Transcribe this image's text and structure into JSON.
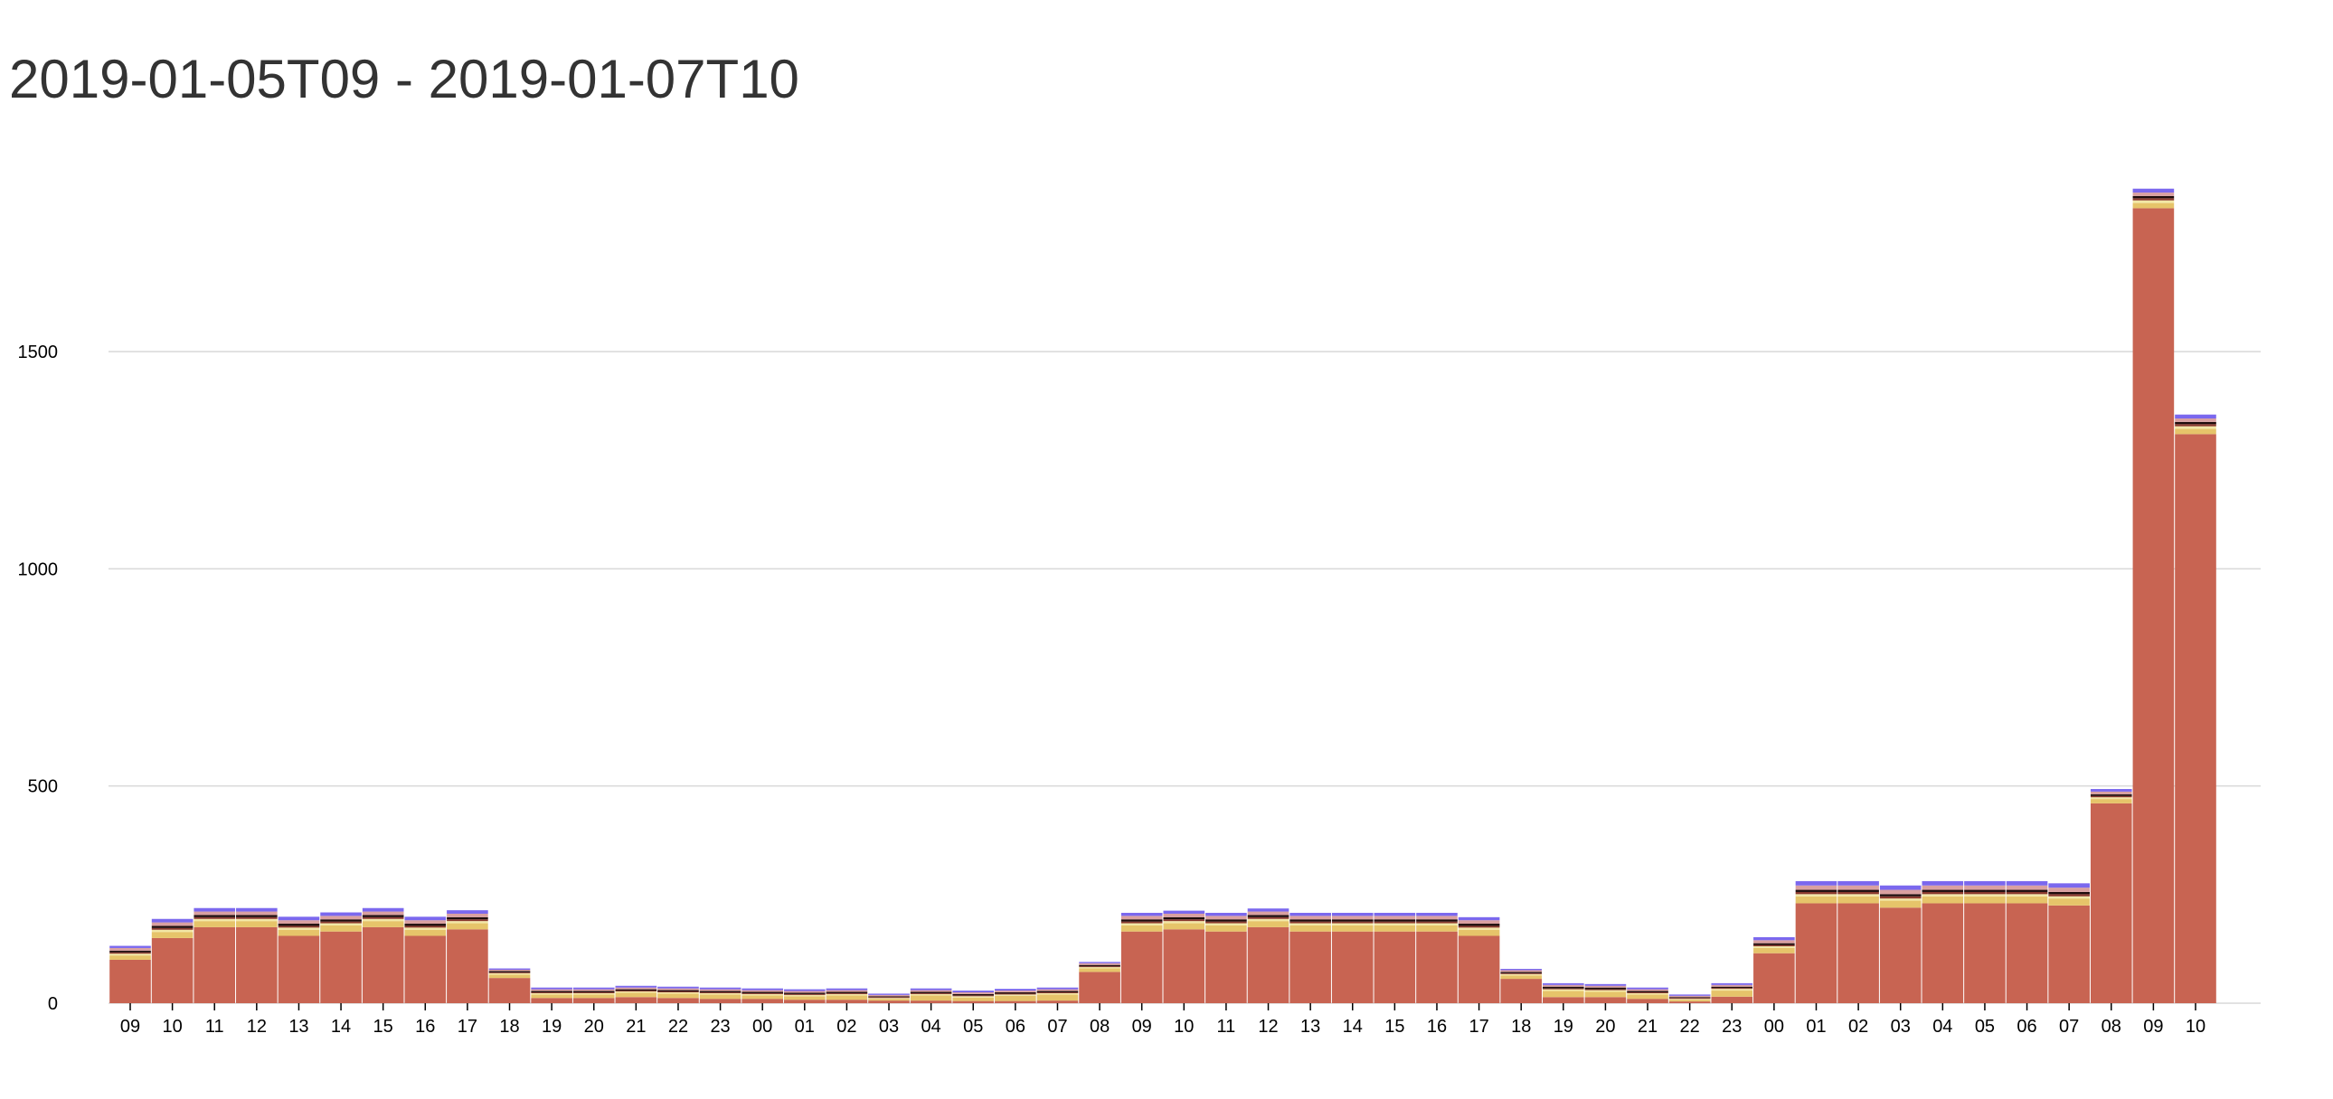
{
  "page": {
    "title": "2019-01-05T09 - 2019-01-07T10"
  },
  "chart_data": {
    "type": "bar",
    "stacked": true,
    "title": "2019-01-05T09 - 2019-01-07T10",
    "xlabel": "",
    "ylabel": "",
    "ylim": [
      0,
      1900
    ],
    "yticks": [
      0,
      500,
      1000,
      1500
    ],
    "grid": true,
    "legend": "none",
    "categories": [
      "09",
      "10",
      "11",
      "12",
      "13",
      "14",
      "15",
      "16",
      "17",
      "18",
      "19",
      "20",
      "21",
      "22",
      "23",
      "00",
      "01",
      "02",
      "03",
      "04",
      "05",
      "06",
      "07",
      "08",
      "09",
      "10",
      "11",
      "12",
      "13",
      "14",
      "15",
      "16",
      "17",
      "18",
      "19",
      "20",
      "21",
      "22",
      "23",
      "00",
      "01",
      "02",
      "03",
      "04",
      "05",
      "06",
      "07",
      "08",
      "09",
      "10"
    ],
    "series": [
      {
        "color": "#c86452",
        "values": [
          100,
          150,
          175,
          175,
          155,
          165,
          175,
          155,
          170,
          58,
          12,
          12,
          14,
          12,
          10,
          10,
          8,
          8,
          6,
          6,
          5,
          5,
          6,
          72,
          165,
          170,
          165,
          175,
          165,
          165,
          165,
          165,
          155,
          56,
          14,
          14,
          10,
          4,
          15,
          115,
          230,
          230,
          220,
          230,
          230,
          230,
          225,
          460,
          1830,
          1310
        ]
      },
      {
        "color": "#e6c46a",
        "values": [
          10,
          14,
          14,
          14,
          14,
          14,
          14,
          14,
          14,
          8,
          8,
          8,
          10,
          10,
          10,
          8,
          8,
          10,
          4,
          12,
          8,
          12,
          14,
          8,
          14,
          14,
          14,
          14,
          14,
          14,
          14,
          14,
          14,
          8,
          14,
          12,
          10,
          4,
          14,
          12,
          16,
          16,
          16,
          16,
          16,
          16,
          16,
          10,
          12,
          12
        ]
      },
      {
        "color": "#f2e7a6",
        "values": [
          4,
          5,
          5,
          5,
          5,
          5,
          5,
          5,
          5,
          3,
          3,
          3,
          3,
          3,
          3,
          3,
          3,
          3,
          2,
          3,
          3,
          3,
          3,
          3,
          5,
          5,
          5,
          5,
          5,
          5,
          5,
          5,
          5,
          3,
          4,
          4,
          3,
          2,
          4,
          4,
          5,
          5,
          5,
          5,
          5,
          5,
          5,
          4,
          6,
          6
        ]
      },
      {
        "color": "#8b3a2e",
        "values": [
          3,
          4,
          4,
          4,
          4,
          4,
          4,
          4,
          4,
          2,
          2,
          2,
          2,
          2,
          2,
          2,
          2,
          2,
          2,
          2,
          2,
          2,
          2,
          2,
          4,
          4,
          4,
          4,
          4,
          4,
          4,
          4,
          4,
          2,
          2,
          2,
          2,
          2,
          2,
          3,
          5,
          5,
          5,
          5,
          5,
          5,
          5,
          3,
          5,
          5
        ]
      },
      {
        "color": "#1e0c0c",
        "values": [
          4,
          5,
          5,
          5,
          5,
          5,
          5,
          5,
          5,
          3,
          3,
          3,
          3,
          3,
          3,
          3,
          3,
          3,
          2,
          3,
          3,
          3,
          3,
          3,
          5,
          5,
          5,
          5,
          5,
          5,
          5,
          5,
          5,
          3,
          4,
          4,
          3,
          2,
          3,
          4,
          5,
          5,
          5,
          5,
          5,
          5,
          5,
          4,
          5,
          5
        ]
      },
      {
        "color": "#d9a0a0",
        "values": [
          6,
          8,
          8,
          8,
          8,
          8,
          8,
          8,
          8,
          3,
          4,
          4,
          4,
          4,
          4,
          4,
          4,
          4,
          3,
          4,
          4,
          4,
          4,
          4,
          8,
          8,
          8,
          8,
          8,
          8,
          8,
          8,
          8,
          4,
          4,
          4,
          4,
          3,
          4,
          7,
          10,
          10,
          10,
          10,
          10,
          10,
          10,
          6,
          8,
          8
        ]
      },
      {
        "color": "#7b68ee",
        "values": [
          5,
          8,
          8,
          8,
          8,
          8,
          8,
          8,
          8,
          3,
          4,
          4,
          4,
          4,
          4,
          4,
          4,
          4,
          3,
          4,
          4,
          4,
          4,
          3,
          7,
          7,
          7,
          7,
          7,
          7,
          7,
          7,
          7,
          3,
          4,
          4,
          4,
          3,
          4,
          7,
          10,
          10,
          10,
          10,
          10,
          10,
          10,
          6,
          9,
          9
        ]
      }
    ]
  }
}
